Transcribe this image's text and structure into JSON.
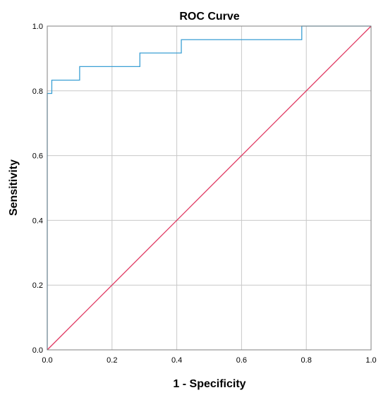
{
  "chart_data": {
    "type": "line",
    "title": "ROC Curve",
    "xlabel": "1 - Specificity",
    "ylabel": "Sensitivity",
    "xlim": [
      0,
      1
    ],
    "ylim": [
      0,
      1
    ],
    "x_ticks": [
      "0.0",
      "0.2",
      "0.4",
      "0.6",
      "0.8",
      "1.0"
    ],
    "y_ticks": [
      "0.0",
      "0.2",
      "0.4",
      "0.6",
      "0.8",
      "1.0"
    ],
    "grid": true,
    "legend": "none",
    "series": [
      {
        "color": "#3a9fd4",
        "step": true,
        "x": [
          0.0,
          0.0,
          0.014,
          0.014,
          0.1,
          0.1,
          0.286,
          0.286,
          0.414,
          0.414,
          0.786,
          0.786,
          1.0
        ],
        "y": [
          0.0,
          0.792,
          0.792,
          0.833,
          0.833,
          0.875,
          0.875,
          0.917,
          0.917,
          0.958,
          0.958,
          1.0,
          1.0
        ]
      },
      {
        "color": "#e0355f",
        "step": false,
        "x": [
          0,
          1
        ],
        "y": [
          0,
          1
        ]
      }
    ]
  }
}
